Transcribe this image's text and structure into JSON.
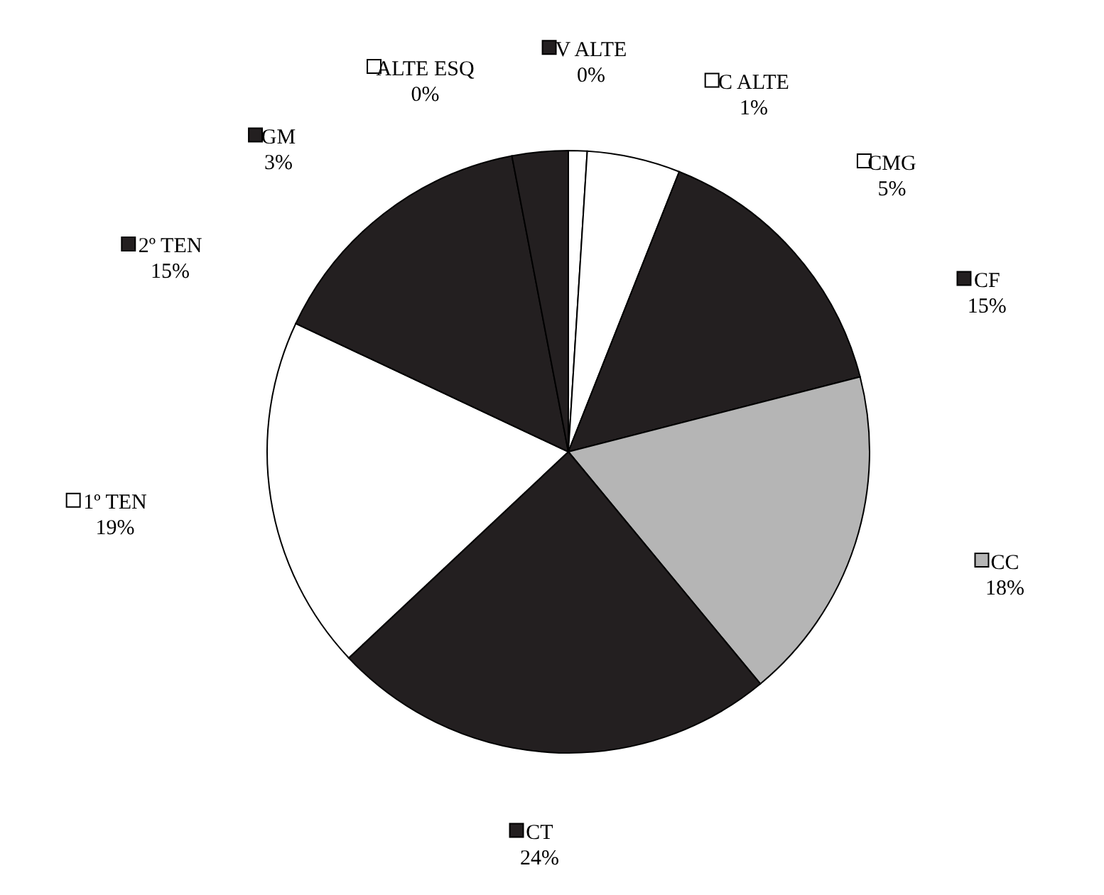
{
  "chart_data": {
    "type": "pie",
    "categories": [
      "ALTE ESQ",
      "V ALTE",
      "C ALTE",
      "CMG",
      "CF",
      "CC",
      "CT",
      "1º TEN",
      "2º TEN",
      "GM"
    ],
    "values": [
      0,
      0,
      1,
      5,
      15,
      18,
      24,
      19,
      15,
      3
    ],
    "value_labels": [
      "0%",
      "0%",
      "1%",
      "5%",
      "15%",
      "18%",
      "24%",
      "19%",
      "15%",
      "3%"
    ],
    "colors": [
      "#ffffff",
      "#231f20",
      "#ffffff",
      "#ffffff",
      "#231f20",
      "#b5b5b5",
      "#231f20",
      "#ffffff",
      "#231f20",
      "#231f20"
    ],
    "legend": true
  }
}
